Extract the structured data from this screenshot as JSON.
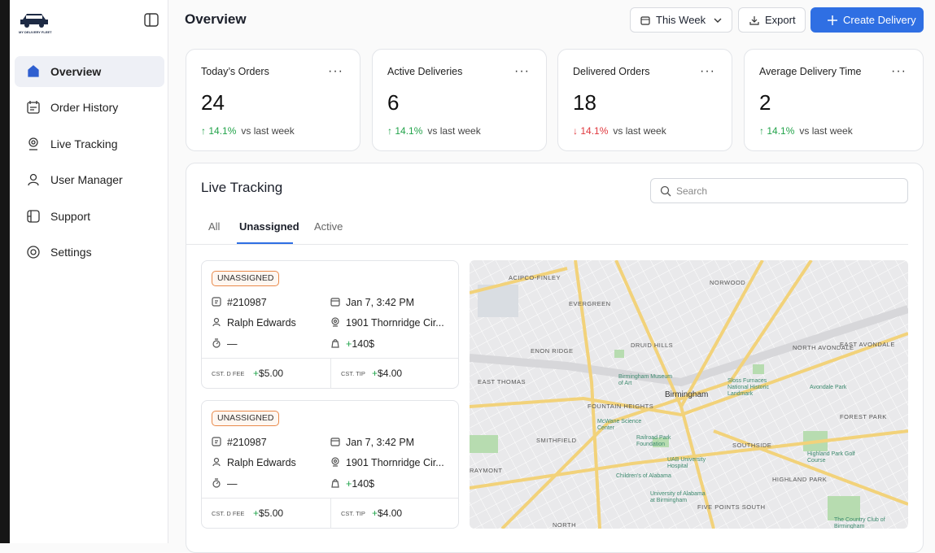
{
  "sidebar": {
    "logo_text": "MY DELIVERY FLEET",
    "nav": [
      "Overview",
      "Order History",
      "Live Tracking",
      "User Manager",
      "Support",
      "Settings"
    ],
    "active": 0
  },
  "header": {
    "title": "Overview",
    "period": "This Week",
    "export": "Export",
    "create": "Create Delivery"
  },
  "stats": [
    {
      "title": "Today’s Orders",
      "value": 24,
      "change": "14.1%",
      "direction": "up",
      "note": "vs last week"
    },
    {
      "title": "Active Deliveries",
      "value": 6,
      "change": "14.1%",
      "direction": "up",
      "note": "vs last week"
    },
    {
      "title": "Delivered Orders",
      "value": 18,
      "change": "14.1%",
      "direction": "down",
      "note": "vs last week"
    },
    {
      "title": "Average Delivery Time",
      "value": 2,
      "change": "14.1%",
      "direction": "up",
      "note": "vs last week"
    }
  ],
  "tracking": {
    "title": "Live Tracking",
    "search_placeholder": "Search",
    "tabs": [
      "All",
      "Unassigned",
      "Active"
    ],
    "active_tab": 1,
    "orders": [
      {
        "status": "UNASSIGNED",
        "id": "#210987",
        "date": "Jan 7, 3:42 PM",
        "customer": "Ralph Edwards",
        "address": "1901 Thornridge Cir...",
        "driver": "—",
        "amount_sign": "+",
        "amount": "140$",
        "fee_label": "CST. D FEE",
        "fee_sign": "+",
        "fee": "$5.00",
        "tip_label": "CST. TIP",
        "tip_sign": "+",
        "tip": "$4.00"
      },
      {
        "status": "UNASSIGNED",
        "id": "#210987",
        "date": "Jan 7, 3:42 PM",
        "customer": "Ralph Edwards",
        "address": "1901 Thornridge Cir...",
        "driver": "—",
        "amount_sign": "+",
        "amount": "140$",
        "fee_label": "CST. D FEE",
        "fee_sign": "+",
        "fee": "$5.00",
        "tip_label": "CST. TIP",
        "tip_sign": "+",
        "tip": "$4.00"
      }
    ],
    "map_labels": [
      "ACIPCO-FINLEY",
      "NORWOOD",
      "EVERGREEN",
      "ENON RIDGE",
      "DRUID HILLS",
      "NORTH AVONDALE",
      "EAST AVONDALE",
      "EAST THOMAS",
      "Birmingham",
      "FOUNTAIN HEIGHTS",
      "FOREST PARK",
      "SMITHFIELD",
      "SOUTHSIDE",
      "RAYMONT",
      "HIGHLAND PARK",
      "FIVE POINTS SOUTH",
      "NORTH",
      "University of Alabama at Birmingham",
      "Birmingham Museum of Art",
      "McWane Science Center",
      "Sloss Furnaces National Historic Landmark",
      "Avondale Park",
      "Railroad Park Foundation",
      "UAB University Hospital",
      "Children's of Alabama",
      "Highland Park Golf Course",
      "The Country Club of Birmingham"
    ]
  }
}
